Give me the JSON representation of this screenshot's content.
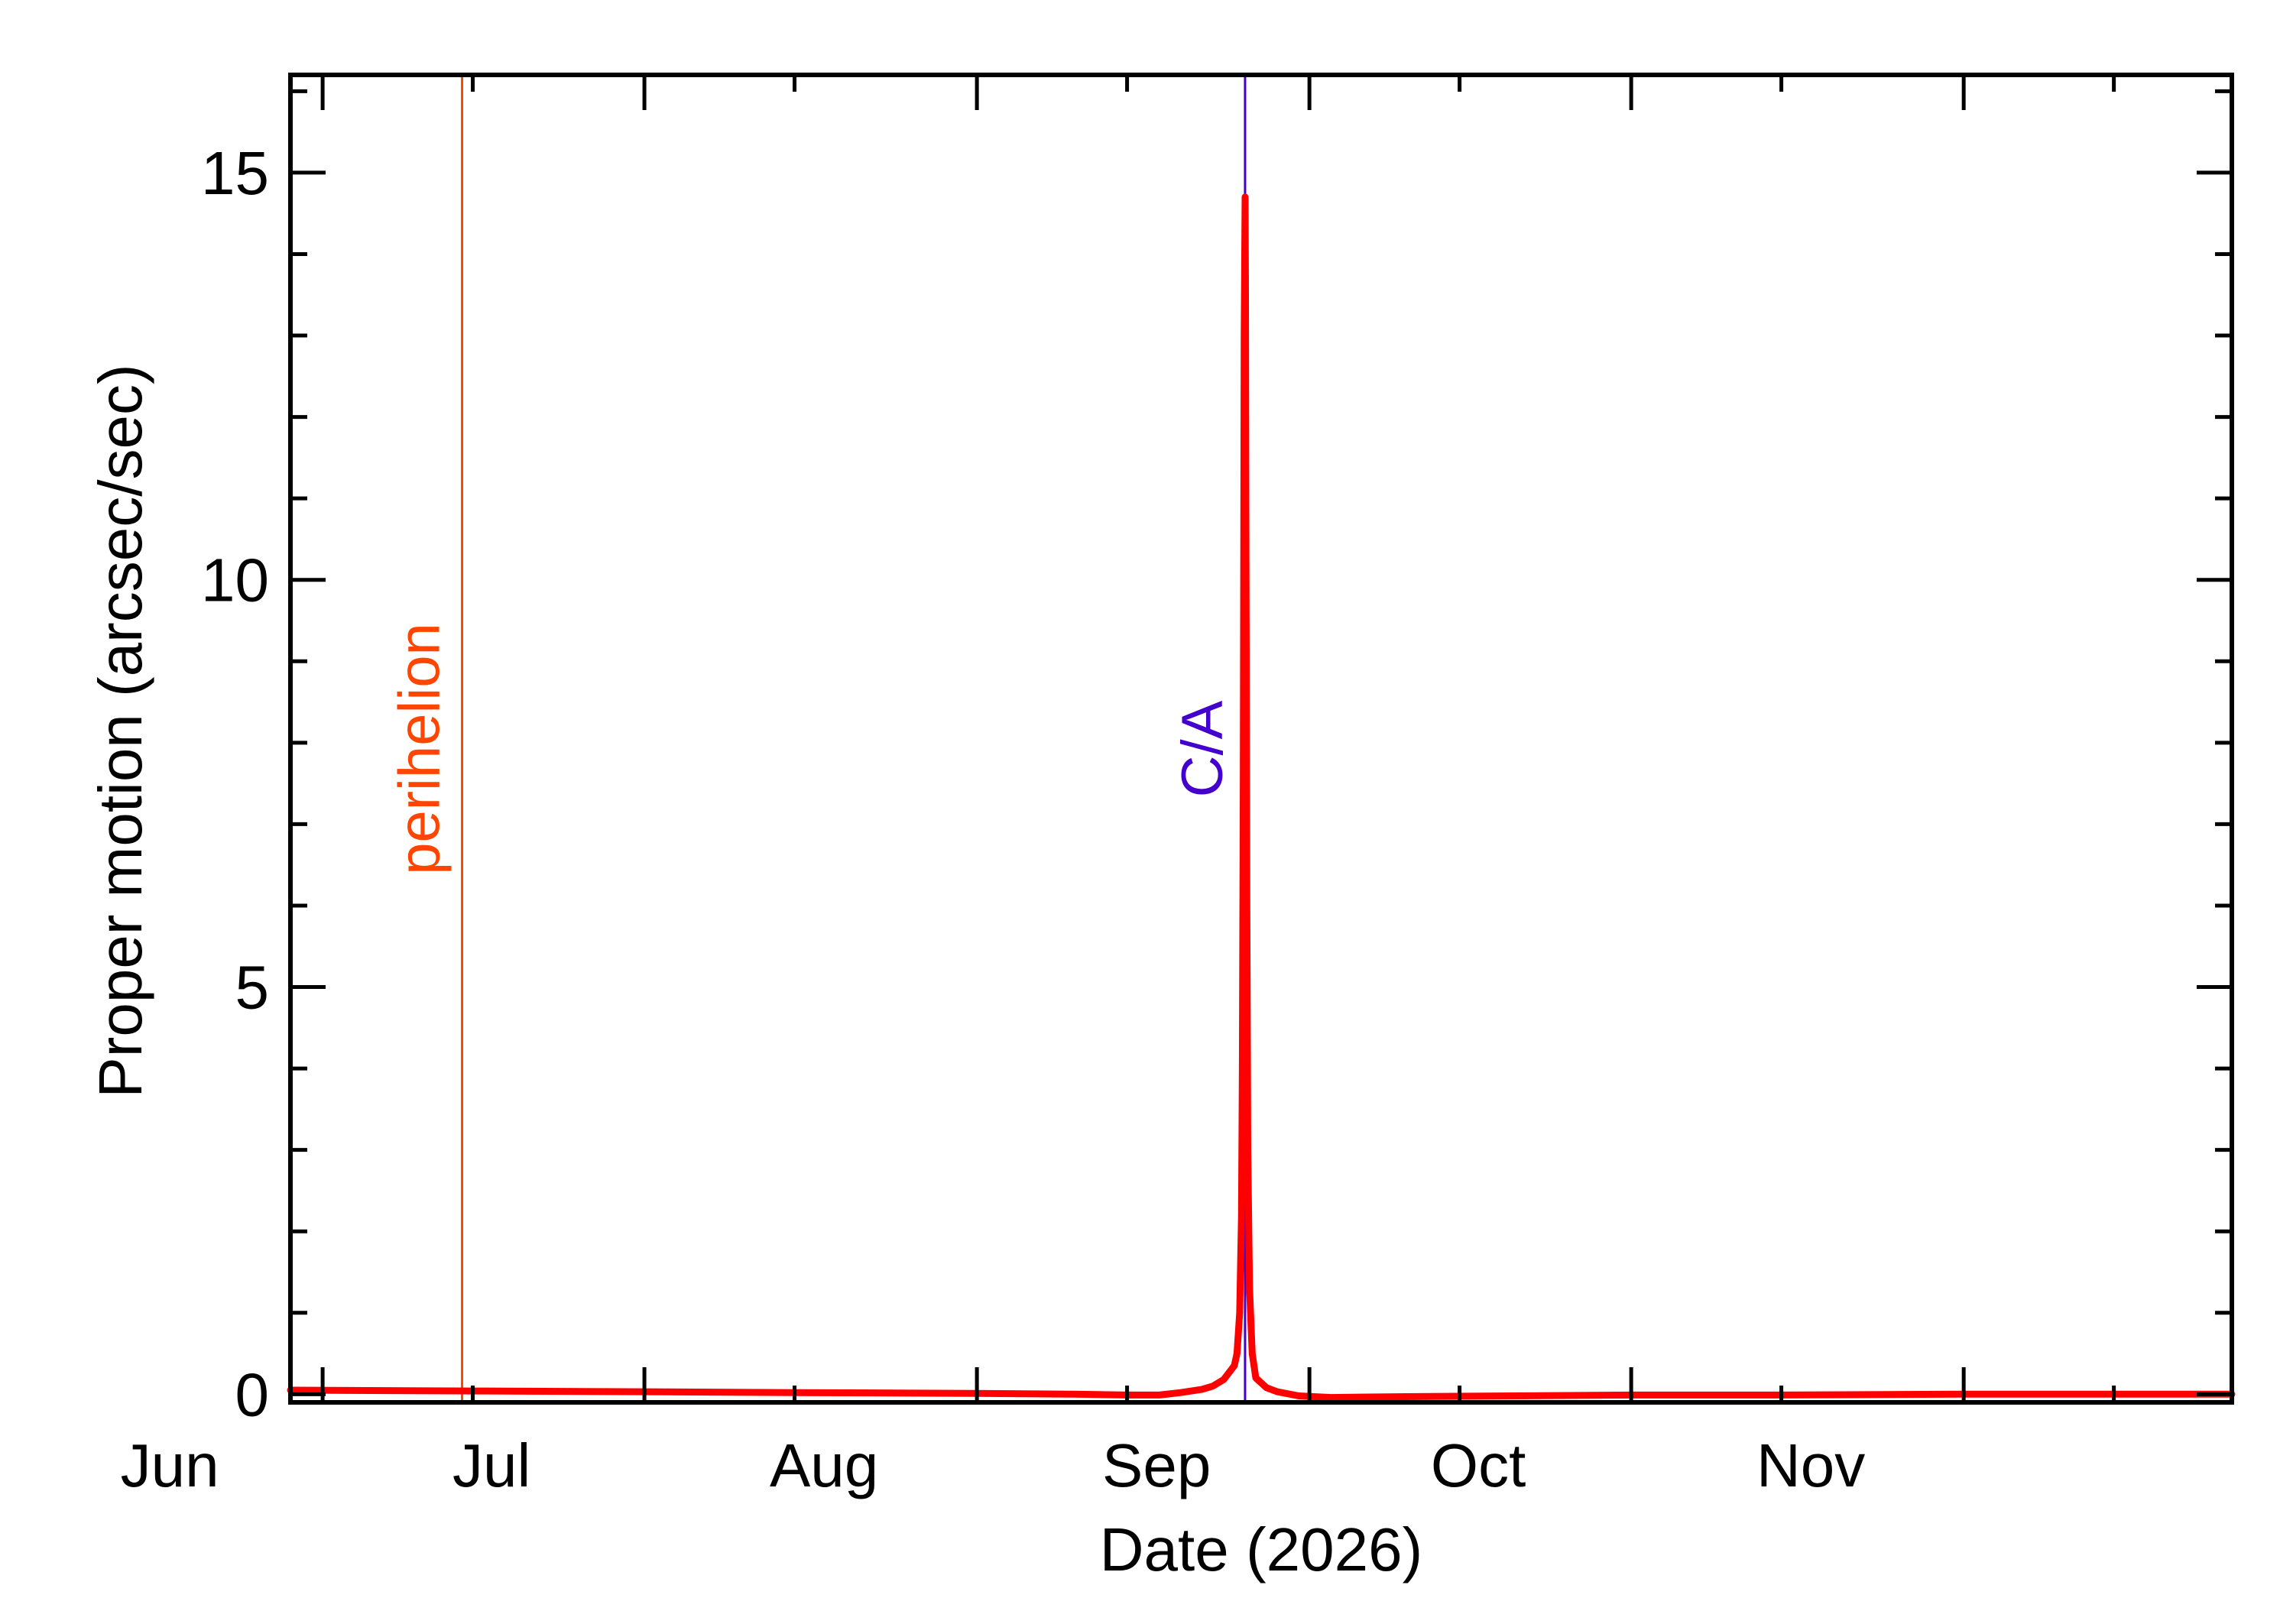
{
  "chart_data": {
    "type": "line",
    "xlabel": "Date (2026)",
    "ylabel": "Proper motion (arcsec/sec)",
    "x_month_labels": [
      "Jun",
      "Jul",
      "Aug",
      "Sep",
      "Oct",
      "Nov"
    ],
    "x_month_starts": [
      "2026-06-01",
      "2026-07-01",
      "2026-08-01",
      "2026-09-01",
      "2026-10-01",
      "2026-11-01"
    ],
    "xlim": [
      "2026-05-29",
      "2026-11-26"
    ],
    "ylim": [
      -0.1,
      16.2
    ],
    "y_ticks": [
      0,
      5,
      10,
      15
    ],
    "y_minor_step": 1,
    "grid": false,
    "series": [
      {
        "color": "#ff0000",
        "x": [
          "2026-05-29",
          "2026-06-15",
          "2026-07-01",
          "2026-07-15",
          "2026-08-01",
          "2026-08-10",
          "2026-08-15",
          "2026-08-18",
          "2026-08-20",
          "2026-08-22",
          "2026-08-23",
          "2026-08-24",
          "2026-08-25",
          "2026-08-25T06:00",
          "2026-08-25T12:00",
          "2026-08-25T16:00",
          "2026-08-25T18:00",
          "2026-08-25T20:00",
          "2026-08-25T22:00",
          "2026-08-26",
          "2026-08-26T01:00",
          "2026-08-26T02:00",
          "2026-08-26T04:00",
          "2026-08-26T06:00",
          "2026-08-26T10:00",
          "2026-08-26T16:00",
          "2026-08-27",
          "2026-08-28",
          "2026-08-29",
          "2026-08-31",
          "2026-09-03",
          "2026-09-10",
          "2026-09-20",
          "2026-10-01",
          "2026-10-15",
          "2026-11-01",
          "2026-11-26"
        ],
        "values": [
          0.05,
          0.04,
          0.03,
          0.02,
          0.01,
          0.0,
          -0.01,
          -0.01,
          0.02,
          0.06,
          0.1,
          0.18,
          0.35,
          0.5,
          1.0,
          2.2,
          4.0,
          7.5,
          13.0,
          14.7,
          13.5,
          10.5,
          6.0,
          3.0,
          1.3,
          0.5,
          0.2,
          0.08,
          0.03,
          -0.02,
          -0.04,
          -0.03,
          -0.02,
          -0.01,
          -0.01,
          0.0,
          0.0
        ]
      }
    ],
    "annotations": [
      {
        "label": "perihelion",
        "date": "2026-06-14",
        "color": "#ff4500"
      },
      {
        "label": "C/A",
        "date": "2026-08-26",
        "color": "#4400cc"
      }
    ]
  }
}
